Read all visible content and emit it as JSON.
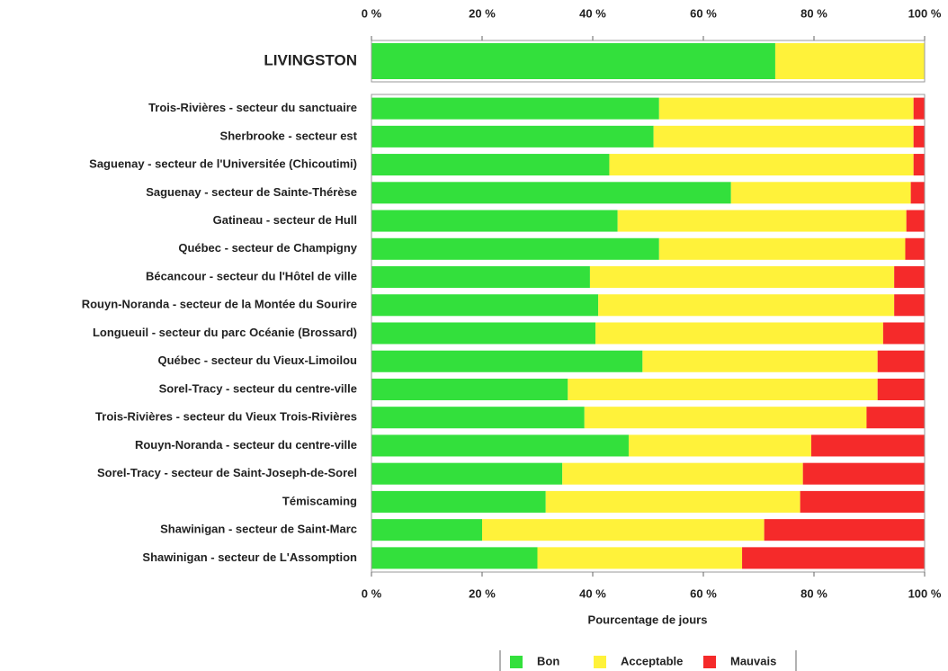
{
  "chart_data": [
    {
      "type": "bar",
      "horizontal": true,
      "stacked": true,
      "xaxis_position": "top",
      "categories": [
        "LIVINGSTON"
      ],
      "series": [
        {
          "name": "Bon",
          "color": "#33e03c",
          "values": [
            73
          ]
        },
        {
          "name": "Acceptable",
          "color": "#fff23a",
          "values": [
            27
          ]
        },
        {
          "name": "Mauvais",
          "color": "#f52a2a",
          "values": [
            0
          ]
        }
      ],
      "xlim": [
        0,
        100
      ],
      "xticks": [
        {
          "value": 0,
          "label": "0 %"
        },
        {
          "value": 20,
          "label": "20 %"
        },
        {
          "value": 40,
          "label": "40 %"
        },
        {
          "value": 60,
          "label": "60 %"
        },
        {
          "value": 80,
          "label": "80 %"
        },
        {
          "value": 100,
          "label": "100 %"
        }
      ]
    },
    {
      "type": "bar",
      "horizontal": true,
      "stacked": true,
      "xaxis_position": "bottom",
      "x_label": "Pourcentage de jours",
      "categories": [
        "Trois-Rivières - secteur du sanctuaire",
        "Sherbrooke - secteur est",
        "Saguenay - secteur de l'Universitée (Chicoutimi)",
        "Saguenay - secteur de Sainte-Thérèse",
        "Gatineau - secteur de Hull",
        "Québec - secteur de Champigny",
        "Bécancour - secteur du l'Hôtel de ville",
        "Rouyn-Noranda - secteur de la Montée du Sourire",
        "Longueuil - secteur du parc Océanie (Brossard)",
        "Québec - secteur du Vieux-Limoilou",
        "Sorel-Tracy - secteur du centre-ville",
        "Trois-Rivières - secteur du Vieux Trois-Rivières",
        "Rouyn-Noranda - secteur du centre-ville",
        "Sorel-Tracy - secteur de Saint-Joseph-de-Sorel",
        "Témiscaming",
        "Shawinigan - secteur de Saint-Marc",
        "Shawinigan - secteur de L'Assomption"
      ],
      "series": [
        {
          "name": "Bon",
          "color": "#33e03c",
          "values": [
            52,
            51,
            43,
            65,
            44.5,
            52,
            39.5,
            41,
            40.5,
            49,
            35.5,
            38.5,
            46.5,
            34.5,
            31.5,
            20,
            30
          ]
        },
        {
          "name": "Acceptable",
          "color": "#fff23a",
          "values": [
            46,
            47,
            55,
            32.5,
            52.2,
            44.5,
            55,
            53.5,
            52,
            42.5,
            56,
            51,
            33,
            43.5,
            46,
            51,
            37
          ]
        },
        {
          "name": "Mauvais",
          "color": "#f52a2a",
          "values": [
            2,
            2,
            2,
            2.5,
            3.3,
            3.5,
            5.5,
            5.5,
            7.5,
            8.5,
            8.5,
            10.5,
            20.5,
            22,
            22.5,
            29,
            33
          ]
        }
      ],
      "xlim": [
        0,
        100
      ],
      "xticks": [
        {
          "value": 0,
          "label": "0 %"
        },
        {
          "value": 20,
          "label": "20 %"
        },
        {
          "value": 40,
          "label": "40 %"
        },
        {
          "value": 60,
          "label": "60 %"
        },
        {
          "value": 80,
          "label": "80 %"
        },
        {
          "value": 100,
          "label": "100 %"
        }
      ]
    }
  ]
}
